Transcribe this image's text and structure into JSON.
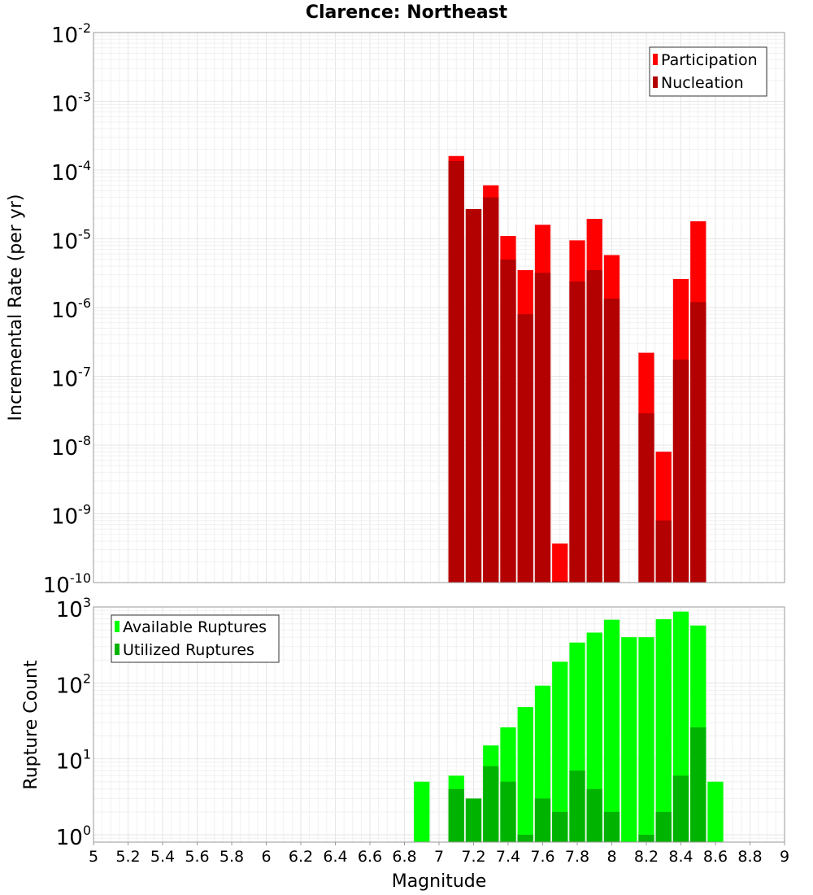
{
  "title": "Clarence: Northeast",
  "x_axis": {
    "label": "Magnitude",
    "ticks": [
      "5",
      "5.2",
      "5.4",
      "5.6",
      "5.8",
      "6",
      "6.2",
      "6.4",
      "6.6",
      "6.8",
      "7",
      "7.2",
      "7.4",
      "7.6",
      "7.8",
      "8",
      "8.2",
      "8.4",
      "8.6",
      "8.8",
      "9"
    ]
  },
  "colors": {
    "participation": "#ff0000",
    "nucleation": "#b30000",
    "available": "#00ff00",
    "utilized": "#00b300"
  },
  "chart_data": [
    {
      "type": "bar",
      "panel": "top",
      "ylabel": "Incremental Rate (per yr)",
      "yscale": "log",
      "ylim": [
        1e-10,
        0.01
      ],
      "y_tick_exponents": [
        -2,
        -3,
        -4,
        -5,
        -6,
        -7,
        -8,
        -9,
        -10
      ],
      "xlim": [
        5,
        9
      ],
      "bin_width": 0.1,
      "legend": {
        "position": "top-right",
        "entries": [
          "Participation",
          "Nucleation"
        ]
      },
      "x": [
        7.1,
        7.2,
        7.3,
        7.4,
        7.5,
        7.6,
        7.7,
        7.8,
        7.9,
        8.0,
        8.2,
        8.3,
        8.4,
        8.5
      ],
      "series": [
        {
          "name": "Participation",
          "values": [
            0.00016,
            2.7e-05,
            6e-05,
            1.1e-05,
            3.5e-06,
            1.6e-05,
            3.7e-10,
            9.5e-06,
            1.95e-05,
            5.8e-06,
            2.2e-07,
            8e-09,
            2.6e-06,
            1.8e-05
          ]
        },
        {
          "name": "Nucleation",
          "values": [
            0.000135,
            2.7e-05,
            4e-05,
            5e-06,
            8e-07,
            3.2e-06,
            1.05e-10,
            2.4e-06,
            3.5e-06,
            1.35e-06,
            2.9e-08,
            8e-10,
            1.75e-07,
            1.2e-06
          ]
        }
      ]
    },
    {
      "type": "bar",
      "panel": "bottom",
      "ylabel": "Rupture Count",
      "yscale": "log",
      "ylim": [
        0.8,
        1000
      ],
      "y_tick_exponents": [
        3,
        2,
        1,
        0
      ],
      "xlim": [
        5,
        9
      ],
      "bin_width": 0.1,
      "legend": {
        "position": "top-left",
        "entries": [
          "Available Ruptures",
          "Utilized Ruptures"
        ]
      },
      "x": [
        6.9,
        7.1,
        7.2,
        7.3,
        7.4,
        7.5,
        7.6,
        7.7,
        7.8,
        7.9,
        8.0,
        8.1,
        8.2,
        8.3,
        8.4,
        8.5,
        8.6
      ],
      "series": [
        {
          "name": "Available Ruptures",
          "values": [
            5,
            6,
            3,
            15,
            26,
            48,
            92,
            190,
            340,
            460,
            680,
            400,
            400,
            690,
            870,
            570,
            5
          ]
        },
        {
          "name": "Utilized Ruptures",
          "values": [
            0,
            4,
            3,
            8,
            5,
            1,
            3,
            2,
            7,
            4,
            2,
            0,
            1,
            2,
            6,
            26,
            0
          ]
        }
      ]
    }
  ]
}
